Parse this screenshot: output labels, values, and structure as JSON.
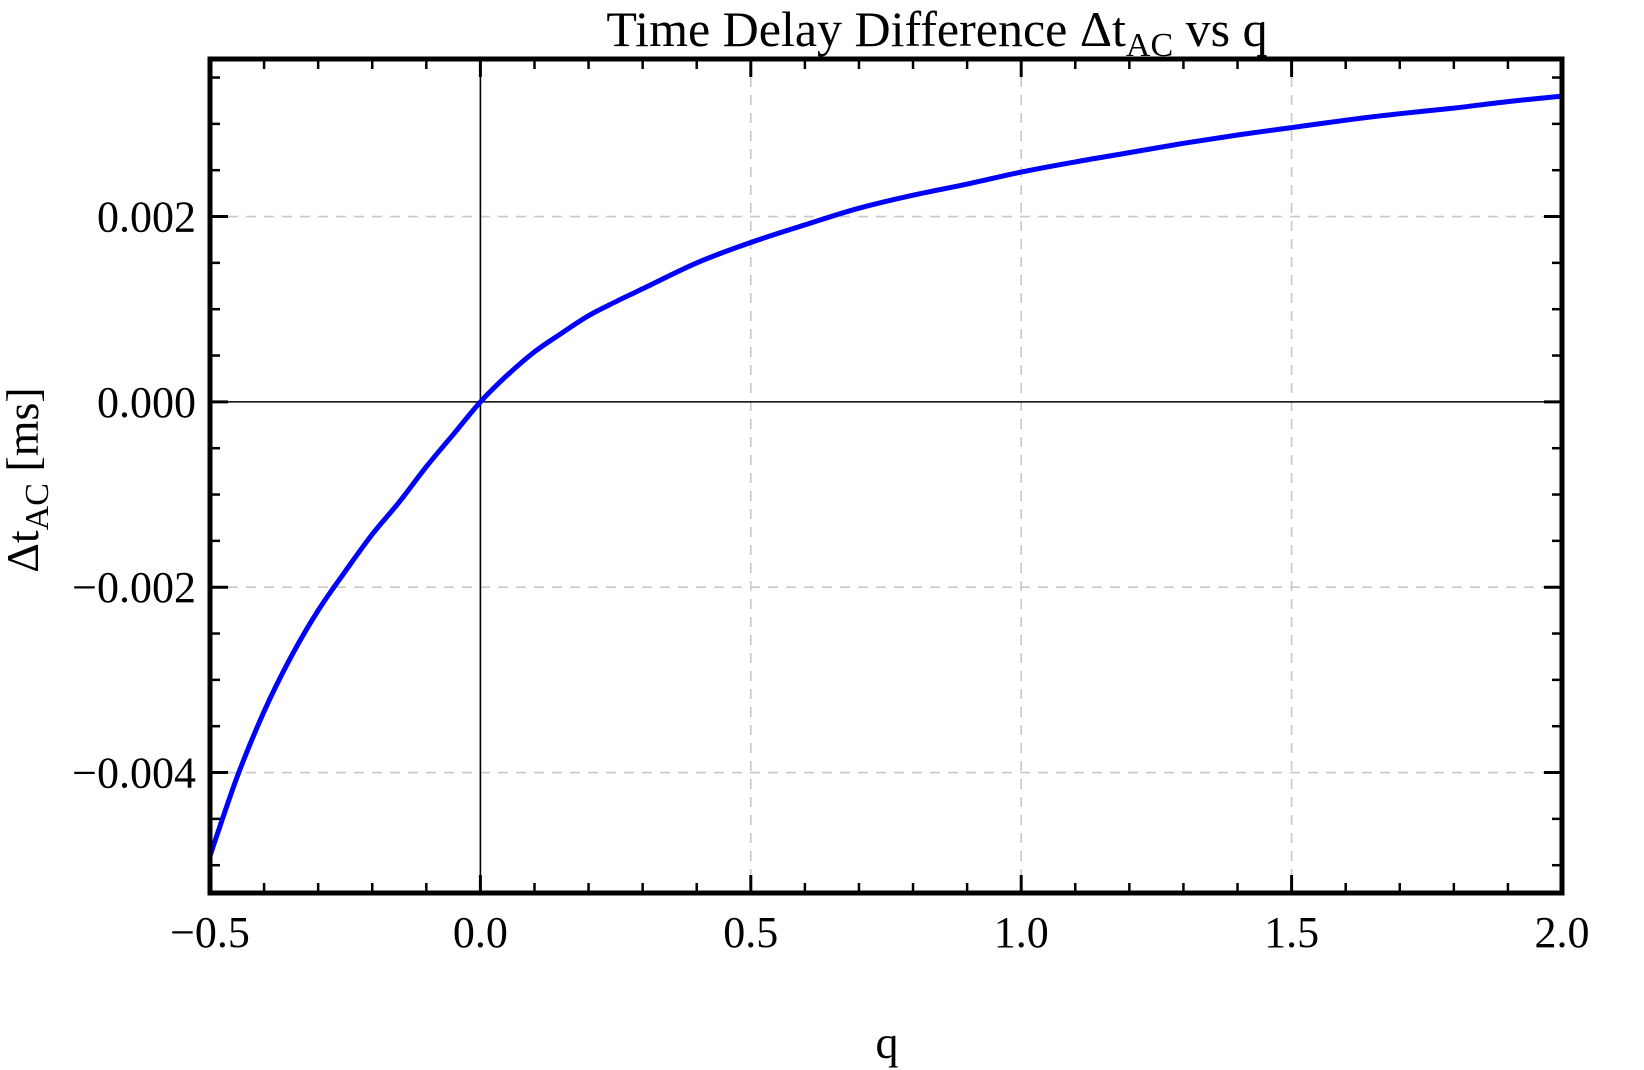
{
  "chart_data": {
    "type": "line",
    "title_main": "Time Delay Difference Δt",
    "title_sub": "AC",
    "title_tail": " vs q",
    "xlabel": "q",
    "ylabel_main": "Δt",
    "ylabel_sub": "AC",
    "ylabel_tail": " [ms]",
    "xlim": [
      -0.5,
      2.0
    ],
    "ylim": [
      -0.0053,
      0.0037
    ],
    "x_ticks": [
      -0.5,
      0.0,
      0.5,
      1.0,
      1.5,
      2.0
    ],
    "x_tick_labels": [
      "−0.5",
      "0.0",
      "0.5",
      "1.0",
      "1.5",
      "2.0"
    ],
    "y_ticks": [
      -0.004,
      -0.002,
      0.0,
      0.002
    ],
    "y_tick_labels": [
      "−0.004",
      "−0.002",
      "0.000",
      "0.002"
    ],
    "grid": true,
    "legend": "none",
    "series": [
      {
        "color": "#0000ff",
        "x": [
          -0.5,
          -0.45,
          -0.4,
          -0.35,
          -0.3,
          -0.25,
          -0.2,
          -0.15,
          -0.1,
          -0.05,
          0.0,
          0.05,
          0.1,
          0.15,
          0.2,
          0.25,
          0.3,
          0.4,
          0.5,
          0.6,
          0.7,
          0.8,
          0.9,
          1.0,
          1.1,
          1.2,
          1.3,
          1.4,
          1.5,
          1.6,
          1.7,
          1.8,
          1.9,
          2.0
        ],
        "values": [
          -0.0049,
          -0.00405,
          -0.00334,
          -0.00275,
          -0.00225,
          -0.00183,
          -0.00143,
          -0.00108,
          -0.0007,
          -0.00035,
          0.0,
          0.00029,
          0.00054,
          0.00074,
          0.00093,
          0.00108,
          0.00122,
          0.0015,
          0.00172,
          0.00191,
          0.00209,
          0.00223,
          0.00235,
          0.00248,
          0.00259,
          0.00269,
          0.00279,
          0.00288,
          0.00296,
          0.00304,
          0.00311,
          0.00317,
          0.00324,
          0.0033
        ]
      }
    ]
  }
}
